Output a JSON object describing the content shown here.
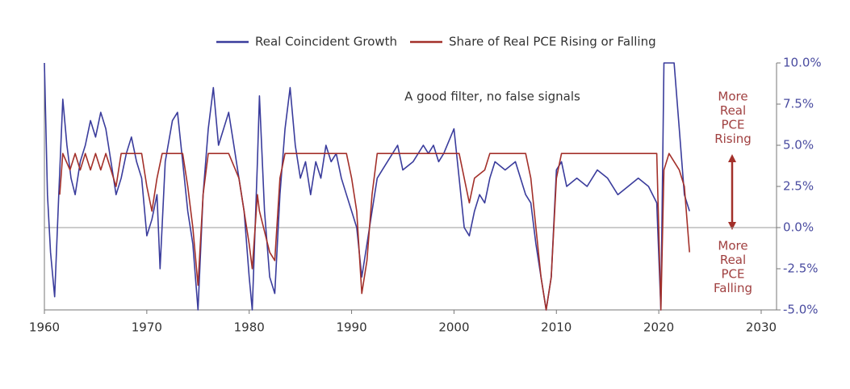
{
  "chart_data": {
    "type": "line",
    "annotations": [
      "A good filter, no false signals",
      [
        "More",
        "Real",
        "PCE",
        "Rising"
      ],
      [
        "More",
        "Real",
        "PCE",
        "Falling"
      ]
    ],
    "xlim": [
      1960,
      2031.5
    ],
    "xticks": [
      1960,
      1970,
      1980,
      1990,
      2000,
      2010,
      2020,
      2030
    ],
    "ylim": [
      -5,
      10
    ],
    "yticks": [
      {
        "value": 10,
        "label": "10.0%"
      },
      {
        "value": 7.5,
        "label": "7.5%"
      },
      {
        "value": 5,
        "label": "5.0%"
      },
      {
        "value": 2.5,
        "label": "2.5%"
      },
      {
        "value": 0,
        "label": "0.0%"
      },
      {
        "value": -2.5,
        "label": "-2.5%"
      },
      {
        "value": -5,
        "label": "-5.0%"
      }
    ],
    "series": [
      {
        "name": "Real Coincident Growth",
        "color": "#3a3c9c",
        "x": [
          1960.0,
          1960.3,
          1960.6,
          1961.0,
          1961.4,
          1961.8,
          1962.2,
          1962.6,
          1963,
          1963.5,
          1964,
          1964.5,
          1965,
          1965.5,
          1966,
          1966.5,
          1967,
          1967.5,
          1968,
          1968.5,
          1969,
          1969.5,
          1970,
          1970.5,
          1971,
          1971.3,
          1971.8,
          1972.5,
          1973,
          1973.5,
          1974,
          1974.5,
          1975,
          1975.5,
          1976,
          1976.5,
          1977,
          1977.5,
          1978,
          1978.5,
          1979,
          1979.5,
          1980,
          1980.3,
          1980.8,
          1981,
          1981.5,
          1982,
          1982.5,
          1983,
          1983.5,
          1984,
          1984.5,
          1985,
          1985.5,
          1986,
          1986.5,
          1987,
          1987.5,
          1988,
          1988.5,
          1989,
          1989.5,
          1990,
          1990.5,
          1991,
          1991.5,
          1992,
          1992.5,
          1993,
          1994,
          1994.5,
          1995,
          1996,
          1997,
          1997.5,
          1998,
          1998.5,
          1999,
          2000,
          2000.5,
          2001,
          2001.5,
          2002,
          2002.5,
          2003,
          2003.5,
          2004,
          2005,
          2006,
          2007,
          2007.5,
          2008,
          2008.5,
          2009,
          2009.5,
          2010,
          2010.5,
          2011,
          2012,
          2013,
          2014,
          2015,
          2016,
          2017,
          2018,
          2019,
          2019.8,
          2020.2,
          2020.5,
          2021,
          2021.5,
          2022,
          2022.5,
          2023
        ],
        "values": [
          10,
          2,
          -1.5,
          -4.2,
          2,
          7.8,
          5,
          3,
          2,
          4,
          5,
          6.5,
          5.5,
          7,
          6,
          4,
          2,
          3,
          4.5,
          5.5,
          4,
          3,
          -0.5,
          0.5,
          2,
          -2.5,
          4,
          6.5,
          7,
          4,
          1,
          -1,
          -5,
          2,
          6,
          8.5,
          5,
          6,
          7,
          5,
          3,
          1,
          -3,
          -5,
          4,
          8,
          1,
          -3,
          -4,
          2,
          6,
          8.5,
          5,
          3,
          4,
          2,
          4,
          3,
          5,
          4,
          4.5,
          3,
          2,
          1,
          0,
          -3,
          -1,
          1,
          3,
          3.5,
          4.5,
          5,
          3.5,
          4,
          5,
          4.5,
          5,
          4,
          4.5,
          6,
          3,
          0,
          -0.5,
          1,
          2,
          1.5,
          3,
          4,
          3.5,
          4,
          2,
          1.5,
          -1,
          -3,
          -5,
          -3,
          3.5,
          4,
          2.5,
          3,
          2.5,
          3.5,
          3,
          2,
          2.5,
          3,
          2.5,
          1.5,
          -5,
          10,
          10,
          10,
          6,
          2,
          1
        ]
      },
      {
        "name": "Share of Real PCE Rising or Falling",
        "color": "#a3302a",
        "x": [
          1961.5,
          1961.8,
          1962.5,
          1963,
          1963.5,
          1964,
          1964.5,
          1965,
          1965.5,
          1966,
          1966.5,
          1967,
          1967.5,
          1969.5,
          1970,
          1970.5,
          1971,
          1971.5,
          1973.5,
          1974,
          1974.5,
          1975,
          1975.5,
          1976,
          1978,
          1979,
          1980,
          1980.3,
          1980.8,
          1981,
          1982,
          1982.5,
          1983,
          1983.5,
          1989.5,
          1990,
          1990.5,
          1991,
          1991.5,
          1992,
          1992.5,
          2000.5,
          2001,
          2001.5,
          2002,
          2003,
          2003.5,
          2007,
          2007.5,
          2008,
          2008.5,
          2009,
          2009.5,
          2010,
          2010.5,
          2019.8,
          2020.2,
          2020.5,
          2021,
          2022,
          2022.5,
          2023
        ],
        "values": [
          2,
          4.5,
          3.5,
          4.5,
          3.5,
          4.5,
          3.5,
          4.5,
          3.5,
          4.5,
          3.5,
          2.5,
          4.5,
          4.5,
          2.5,
          1,
          3,
          4.5,
          4.5,
          2.5,
          0,
          -3.5,
          2,
          4.5,
          4.5,
          3,
          -1,
          -2.5,
          2,
          1,
          -1.5,
          -2,
          3,
          4.5,
          4.5,
          3,
          1,
          -4,
          -2,
          2,
          4.5,
          4.5,
          3,
          1.5,
          3,
          3.5,
          4.5,
          4.5,
          3,
          0,
          -3,
          -5,
          -3,
          3,
          4.5,
          4.5,
          -5,
          3.5,
          4.5,
          3.5,
          2.5,
          -1.5
        ]
      }
    ]
  }
}
